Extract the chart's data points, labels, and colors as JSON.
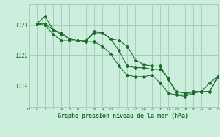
{
  "title": "Graphe pression niveau de la mer (hPa)",
  "bg_color": "#cceedd",
  "grid_color": "#aaccbb",
  "line_color": "#1a6b2a",
  "xlim": [
    0,
    23
  ],
  "ylim": [
    1018.3,
    1021.7
  ],
  "yticks": [
    1019,
    1020,
    1021
  ],
  "xtick_labels": [
    "0",
    "1",
    "2",
    "3",
    "4",
    "5",
    "6",
    "7",
    "8",
    "9",
    "10",
    "11",
    "12",
    "13",
    "14",
    "15",
    "16",
    "17",
    "18",
    "19",
    "20",
    "21",
    "22",
    "23"
  ],
  "series": [
    [
      1021.05,
      1021.3,
      1020.85,
      1020.75,
      1020.55,
      1020.5,
      1020.5,
      1020.75,
      1020.75,
      1020.55,
      1020.5,
      1020.3,
      1019.85,
      1019.7,
      1019.65,
      1019.65,
      1019.2,
      1018.8,
      1018.75,
      1018.8,
      1018.8,
      1018.8,
      1019.3
    ],
    [
      1021.05,
      1021.05,
      1020.85,
      1020.7,
      1020.55,
      1020.5,
      1020.5,
      1020.8,
      1020.75,
      1020.55,
      1020.15,
      1019.65,
      1019.6,
      1019.6,
      1019.55,
      1019.55,
      1019.25,
      1018.7,
      1018.7,
      1018.8,
      1018.8,
      1019.1,
      1019.3
    ],
    [
      1021.05,
      1021.0,
      1020.7,
      1020.5,
      1020.5,
      1020.5,
      1020.45,
      1020.45,
      1020.3,
      1020.05,
      1019.65,
      1019.35,
      1019.3,
      1019.3,
      1019.35,
      1019.1,
      1018.75,
      1018.7,
      1018.65,
      1018.75,
      1018.8,
      1018.8,
      1019.3
    ]
  ]
}
